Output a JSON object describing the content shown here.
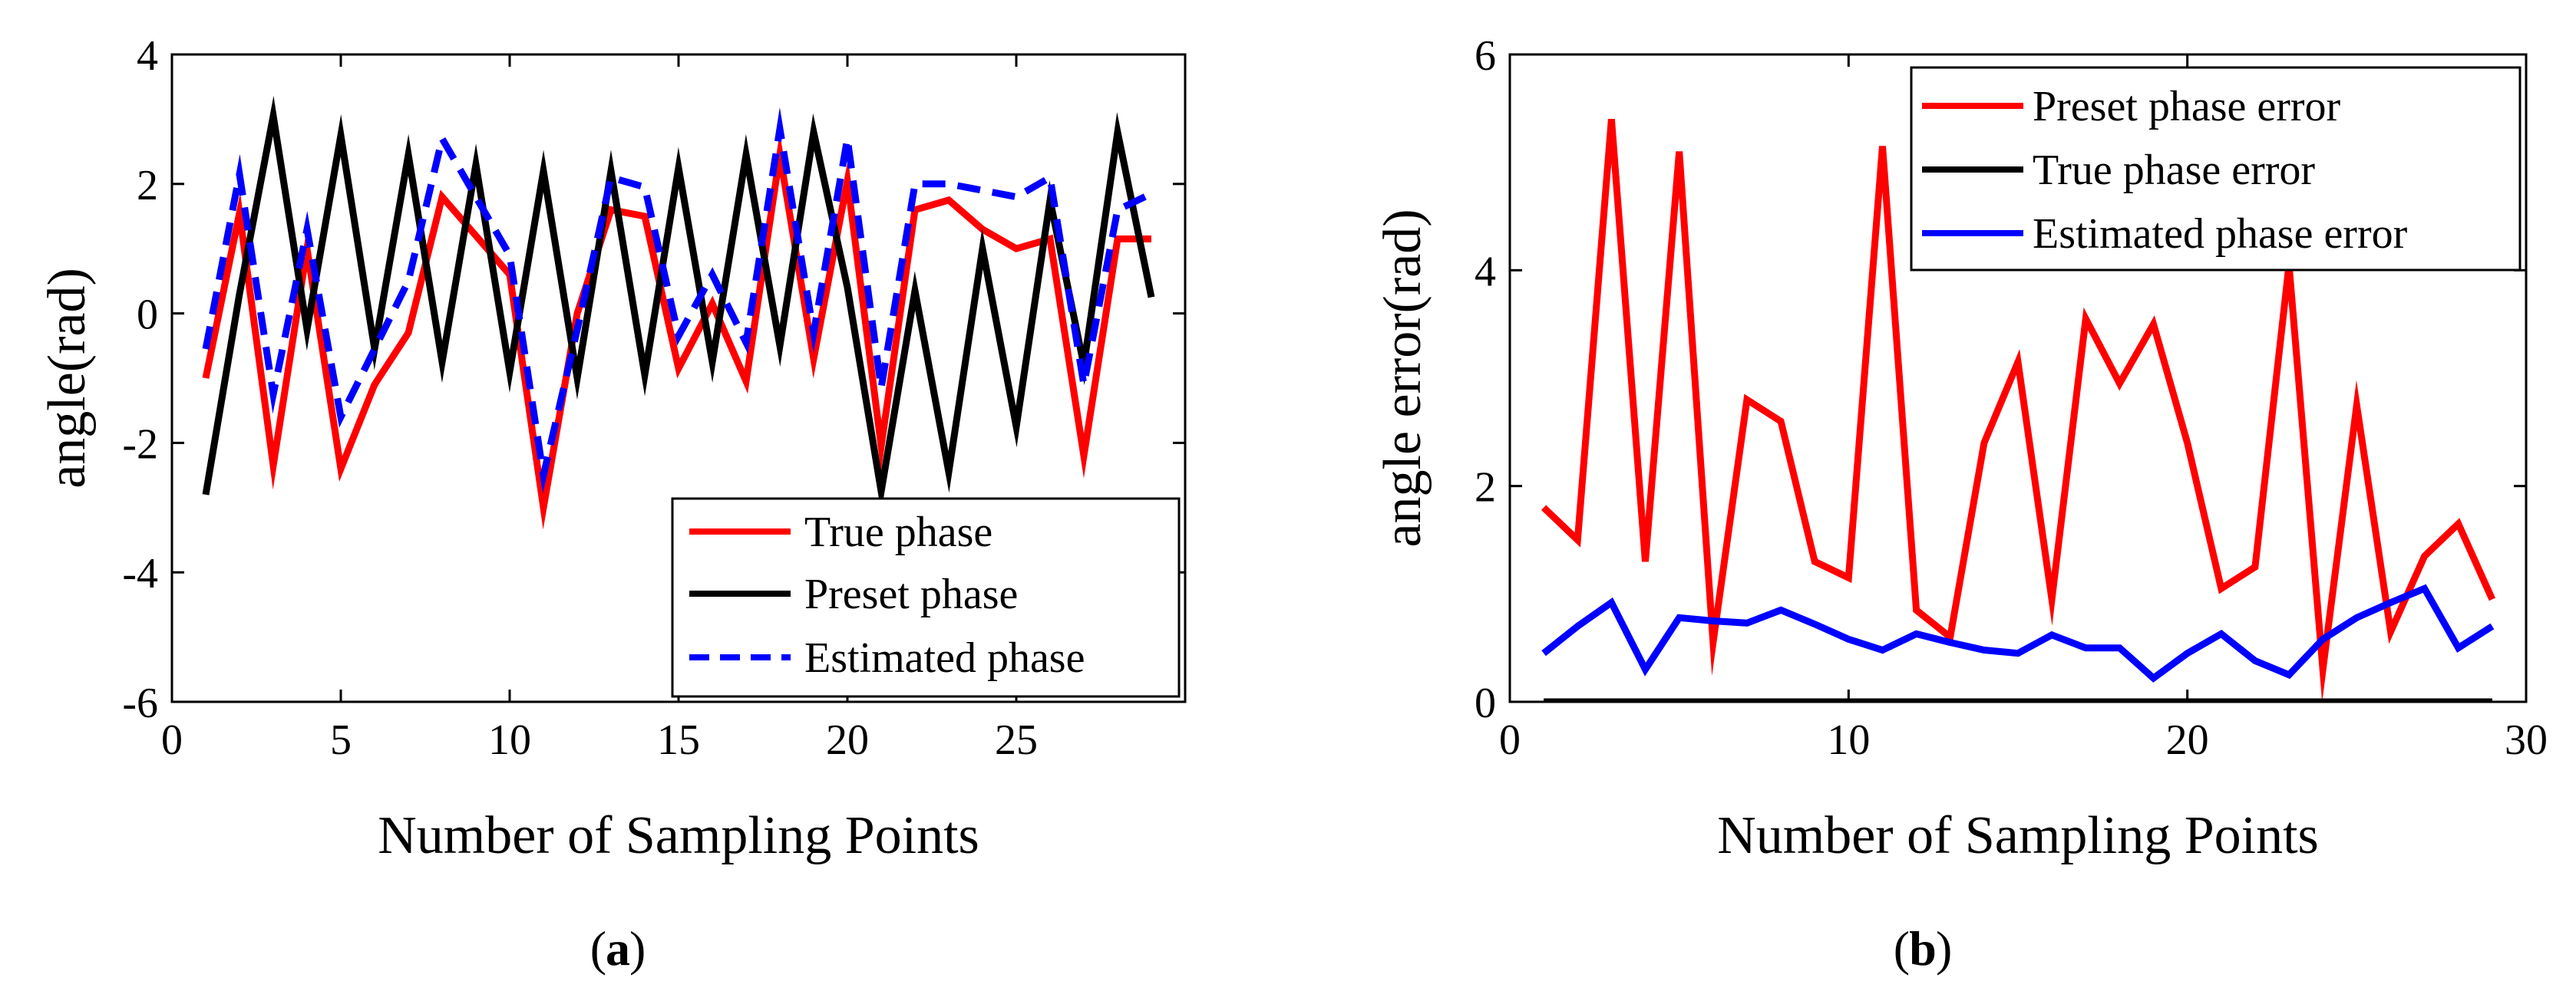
{
  "chart_data": [
    {
      "id": "a",
      "type": "line",
      "panel_label": "a",
      "xlabel": "Number of Sampling Points",
      "ylabel": "angle(rad)",
      "xlim": [
        0,
        30
      ],
      "ylim": [
        -6,
        4
      ],
      "xticks": [
        0,
        5,
        10,
        15,
        20,
        25
      ],
      "yticks": [
        -6,
        -4,
        -2,
        0,
        2,
        4
      ],
      "tick_labels_x": [
        "0",
        "5",
        "10",
        "15",
        "20",
        "25"
      ],
      "tick_labels_y": [
        "-6",
        "-4",
        "-2",
        "0",
        "2",
        "4"
      ],
      "legend_position": "bottom-right",
      "x": [
        1,
        2,
        3,
        4,
        5,
        6,
        7,
        8,
        9,
        10,
        11,
        12,
        13,
        14,
        15,
        16,
        17,
        18,
        19,
        20,
        21,
        22,
        23,
        24,
        25,
        26,
        27,
        28,
        29
      ],
      "series": [
        {
          "name": "True phase",
          "color": "#ff0000",
          "dash": "solid",
          "values": [
            -1.0,
            1.55,
            -2.35,
            1.0,
            -2.4,
            -1.1,
            -0.3,
            1.8,
            1.2,
            0.6,
            -3.0,
            0.0,
            1.6,
            1.5,
            -0.85,
            0.15,
            -1.05,
            2.45,
            -0.7,
            2.05,
            -2.05,
            1.6,
            1.75,
            1.3,
            1.0,
            1.15,
            -2.2,
            1.15,
            1.15
          ]
        },
        {
          "name": "Preset phase",
          "color": "#000000",
          "dash": "solid",
          "values": [
            -2.8,
            0.3,
            3.05,
            -0.25,
            2.75,
            -0.55,
            2.45,
            -0.75,
            2.3,
            -0.9,
            2.2,
            -1.0,
            2.2,
            -0.95,
            2.25,
            -0.75,
            2.45,
            -0.5,
            2.8,
            0.4,
            -2.75,
            0.35,
            -2.45,
            1.0,
            -1.75,
            1.75,
            -0.8,
            2.8,
            0.25
          ]
        },
        {
          "name": "Estimated phase",
          "color": "#0000ff",
          "dash": "dashed",
          "values": [
            -0.55,
            2.15,
            -1.25,
            1.3,
            -1.6,
            -0.55,
            0.5,
            2.7,
            1.8,
            0.9,
            -2.5,
            -0.25,
            2.1,
            1.95,
            -0.35,
            0.6,
            -0.45,
            2.85,
            -0.3,
            2.7,
            -1.15,
            2.0,
            2.0,
            1.9,
            1.8,
            2.1,
            -1.1,
            1.6,
            1.85
          ]
        }
      ]
    },
    {
      "id": "b",
      "type": "line",
      "panel_label": "b",
      "xlabel": "Number of Sampling Points",
      "ylabel": "angle error(rad)",
      "xlim": [
        0,
        30
      ],
      "ylim": [
        0,
        6
      ],
      "xticks": [
        0,
        10,
        20,
        30
      ],
      "yticks": [
        0,
        2,
        4,
        6
      ],
      "tick_labels_x": [
        "0",
        "10",
        "20",
        "30"
      ],
      "tick_labels_y": [
        "0",
        "2",
        "4",
        "6"
      ],
      "legend_position": "top-right",
      "x": [
        1,
        2,
        3,
        4,
        5,
        6,
        7,
        8,
        9,
        10,
        11,
        12,
        13,
        14,
        15,
        16,
        17,
        18,
        19,
        20,
        21,
        22,
        23,
        24,
        25,
        26,
        27,
        28,
        29
      ],
      "series": [
        {
          "name": "Preset phase error",
          "color": "#ff0000",
          "dash": "solid",
          "values": [
            1.8,
            1.5,
            5.4,
            1.3,
            5.1,
            0.55,
            2.8,
            2.6,
            1.3,
            1.15,
            5.15,
            0.85,
            0.6,
            2.4,
            3.15,
            0.95,
            3.55,
            2.95,
            3.5,
            2.4,
            1.05,
            1.25,
            4.05,
            0.3,
            2.75,
            0.65,
            1.35,
            1.65,
            0.95
          ]
        },
        {
          "name": "True phase error",
          "color": "#000000",
          "dash": "solid",
          "values": [
            0,
            0,
            0,
            0,
            0,
            0,
            0,
            0,
            0,
            0,
            0,
            0,
            0,
            0,
            0,
            0,
            0,
            0,
            0,
            0,
            0,
            0,
            0,
            0,
            0,
            0,
            0,
            0,
            0
          ]
        },
        {
          "name": "Estimated phase error",
          "color": "#0000ff",
          "dash": "solid",
          "values": [
            0.45,
            0.7,
            0.92,
            0.3,
            0.78,
            0.75,
            0.73,
            0.85,
            0.72,
            0.58,
            0.48,
            0.63,
            0.55,
            0.48,
            0.45,
            0.62,
            0.5,
            0.5,
            0.22,
            0.45,
            0.63,
            0.38,
            0.25,
            0.58,
            0.78,
            0.92,
            1.05,
            0.5,
            0.7
          ]
        }
      ]
    }
  ]
}
